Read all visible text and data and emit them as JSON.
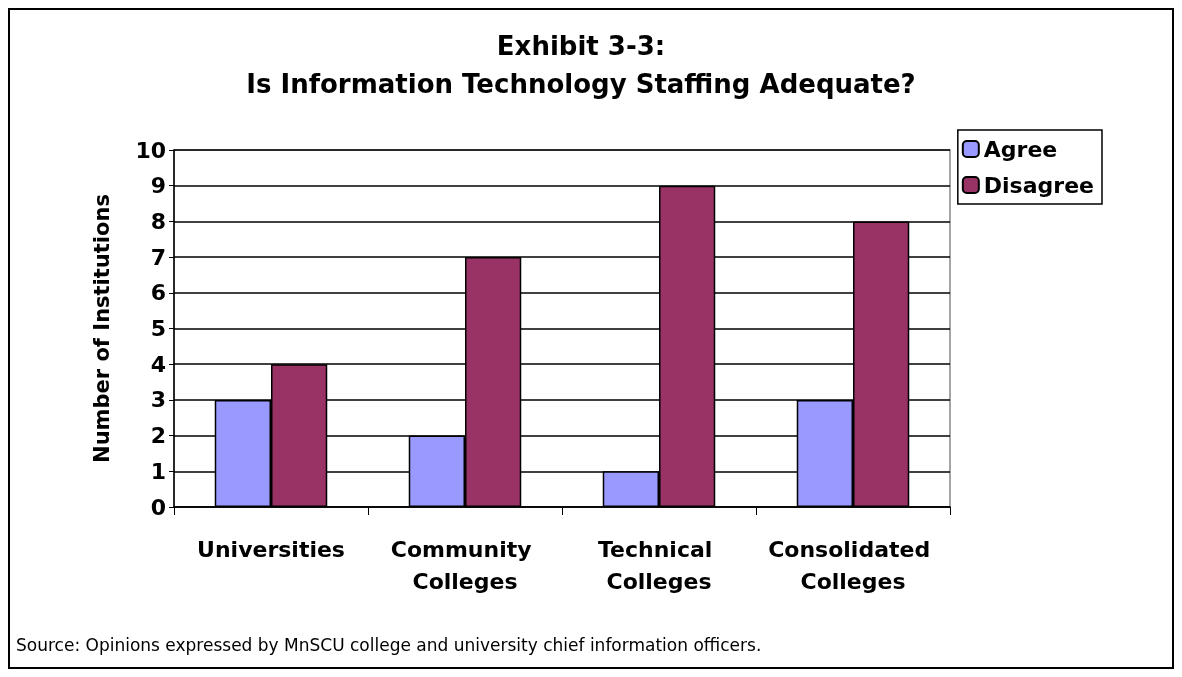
{
  "chart_data": {
    "type": "bar",
    "title": "Exhibit 3-3:\nIs Information Technology Staffing Adequate?",
    "ylabel": "Number of Institutions",
    "categories": [
      "Universities",
      "Community Colleges",
      "Technical Colleges",
      "Consolidated Colleges"
    ],
    "series": [
      {
        "name": "Agree",
        "color": "#9999ff",
        "values": [
          3,
          2,
          1,
          3
        ]
      },
      {
        "name": "Disagree",
        "color": "#993366",
        "values": [
          4,
          7,
          9,
          8
        ]
      }
    ],
    "ylim": [
      0,
      10
    ],
    "yticks": [
      0,
      1,
      2,
      3,
      4,
      5,
      6,
      7,
      8,
      9,
      10
    ],
    "grid": "y",
    "legend": "top right",
    "annotations": [
      "Source: Opinions expressed by MnSCU college and university chief information officers."
    ]
  }
}
